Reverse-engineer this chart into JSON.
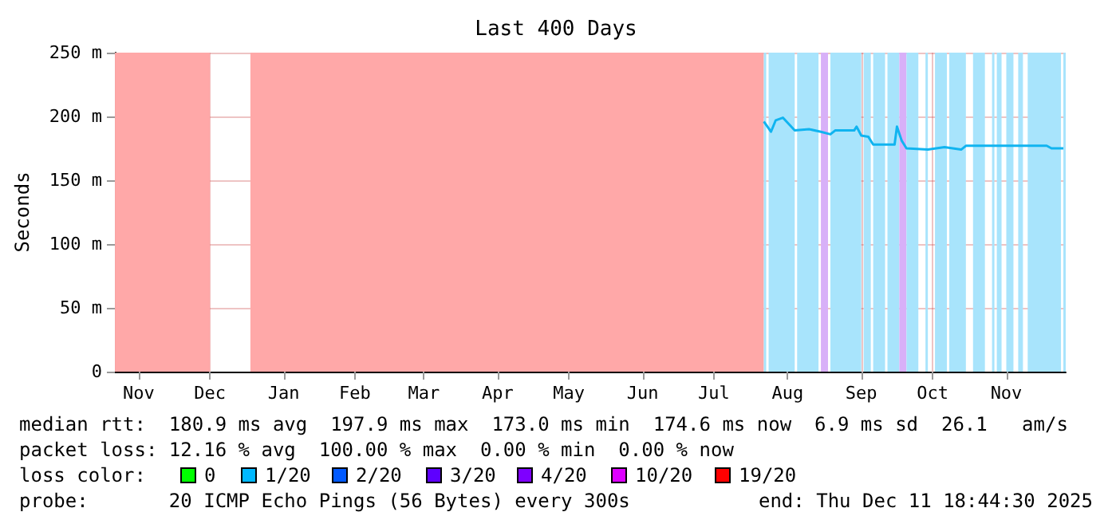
{
  "chart_data": {
    "type": "line",
    "title": "Last 400 Days",
    "ylabel": "Seconds",
    "x": [
      "2025-08-06",
      "2025-08-09",
      "2025-08-11",
      "2025-08-14",
      "2025-08-19",
      "2025-08-25",
      "2025-08-30",
      "2025-09-03",
      "2025-09-05",
      "2025-09-13",
      "2025-09-14",
      "2025-09-16",
      "2025-09-19",
      "2025-09-21",
      "2025-09-30",
      "2025-10-01",
      "2025-10-03",
      "2025-10-05",
      "2025-10-14",
      "2025-10-21",
      "2025-10-28",
      "2025-10-30",
      "2025-11-13",
      "2025-12-03",
      "2025-12-05",
      "2025-12-10"
    ],
    "series": [
      {
        "color": "#10b4f0",
        "values": [
          196,
          188,
          197,
          199,
          189,
          190,
          188,
          186,
          189,
          189,
          192,
          185,
          184,
          178,
          178,
          192,
          181,
          175,
          174,
          176,
          174,
          177,
          177,
          177,
          175,
          175
        ]
      }
    ],
    "xlim": [
      "2024-11-06",
      "2025-12-11"
    ],
    "xticks": [
      {
        "value": "2024-11-16",
        "label": "Nov"
      },
      {
        "value": "2024-12-16",
        "label": "Dec"
      },
      {
        "value": "2025-01-16",
        "label": "Jan"
      },
      {
        "value": "2025-02-15",
        "label": "Feb"
      },
      {
        "value": "2025-03-16",
        "label": "Mar"
      },
      {
        "value": "2025-04-16",
        "label": "Apr"
      },
      {
        "value": "2025-05-16",
        "label": "May"
      },
      {
        "value": "2025-06-16",
        "label": "Jun"
      },
      {
        "value": "2025-07-16",
        "label": "Jul"
      },
      {
        "value": "2025-08-16",
        "label": "Aug"
      },
      {
        "value": "2025-09-16",
        "label": "Sep"
      },
      {
        "value": "2025-10-16",
        "label": "Oct"
      },
      {
        "value": "2025-11-16",
        "label": "Nov"
      }
    ],
    "ylim": [
      0,
      250
    ],
    "yticks": [
      0,
      {
        "value": 50,
        "label": "50 m"
      },
      {
        "value": 100,
        "label": "100 m"
      },
      {
        "value": 150,
        "label": "150 m"
      },
      {
        "value": 200,
        "label": "200 m"
      },
      {
        "value": 250,
        "label": "250 m"
      }
    ],
    "grid": true,
    "bands": [
      {
        "axis": "x",
        "from": "2024-11-06",
        "to": "2024-12-16",
        "color": "#ffa8a8"
      },
      {
        "axis": "x",
        "from": "2025-01-02",
        "to": "2025-08-06",
        "color": "#ffa8a8"
      },
      {
        "axis": "x",
        "from": "2025-08-06",
        "to": "2025-08-07",
        "color": "#a8e4fc"
      },
      {
        "axis": "x",
        "from": "2025-08-08",
        "to": "2025-08-19",
        "color": "#a8e4fc"
      },
      {
        "axis": "x",
        "from": "2025-08-20",
        "to": "2025-08-29",
        "color": "#a8e4fc"
      },
      {
        "axis": "x",
        "from": "2025-08-30",
        "to": "2025-09-02",
        "color": "#d8b0f8"
      },
      {
        "axis": "x",
        "from": "2025-09-03",
        "to": "2025-09-16",
        "color": "#a8e4fc"
      },
      {
        "axis": "x",
        "from": "2025-09-17",
        "to": "2025-09-20",
        "color": "#a8e4fc"
      },
      {
        "axis": "x",
        "from": "2025-09-21",
        "to": "2025-09-26",
        "color": "#a8e4fc"
      },
      {
        "axis": "x",
        "from": "2025-09-27",
        "to": "2025-10-02",
        "color": "#a8e4fc"
      },
      {
        "axis": "x",
        "from": "2025-10-02",
        "to": "2025-10-05",
        "color": "#d8b0f8"
      },
      {
        "axis": "x",
        "from": "2025-10-05",
        "to": "2025-10-10",
        "color": "#a8e4fc"
      },
      {
        "axis": "x",
        "from": "2025-10-13",
        "to": "2025-10-14",
        "color": "#a8e4fc"
      },
      {
        "axis": "x",
        "from": "2025-10-17",
        "to": "2025-10-22",
        "color": "#a8e4fc"
      },
      {
        "axis": "x",
        "from": "2025-10-23",
        "to": "2025-10-30",
        "color": "#a8e4fc"
      },
      {
        "axis": "x",
        "from": "2025-11-02",
        "to": "2025-11-07",
        "color": "#a8e4fc"
      },
      {
        "axis": "x",
        "from": "2025-11-10",
        "to": "2025-11-11",
        "color": "#a8e4fc"
      },
      {
        "axis": "x",
        "from": "2025-11-12",
        "to": "2025-11-14",
        "color": "#a8e4fc"
      },
      {
        "axis": "x",
        "from": "2025-11-16",
        "to": "2025-11-19",
        "color": "#a8e4fc"
      },
      {
        "axis": "x",
        "from": "2025-11-21",
        "to": "2025-11-23",
        "color": "#a8e4fc"
      },
      {
        "axis": "x",
        "from": "2025-11-25",
        "to": "2025-12-09",
        "color": "#a8e4fc"
      },
      {
        "axis": "x",
        "from": "2025-12-10",
        "to": "2025-12-11",
        "color": "#a8e4fc"
      }
    ],
    "annotations": [
      "median rtt:  180.9 ms avg  197.9 ms max  173.0 ms min  174.6 ms now  6.9 ms sd  26.1   am/s",
      "packet loss: 12.16 % avg  100.00 % max  0.00 % min  0.00 % now",
      "loss color:",
      "0",
      "1/20",
      "2/20",
      "3/20",
      "4/20",
      "10/20",
      "19/20",
      "probe:       20 ICMP Echo Pings (56 Bytes) every 300s",
      "end: Thu Dec 11 18:44:30 2025"
    ]
  }
}
